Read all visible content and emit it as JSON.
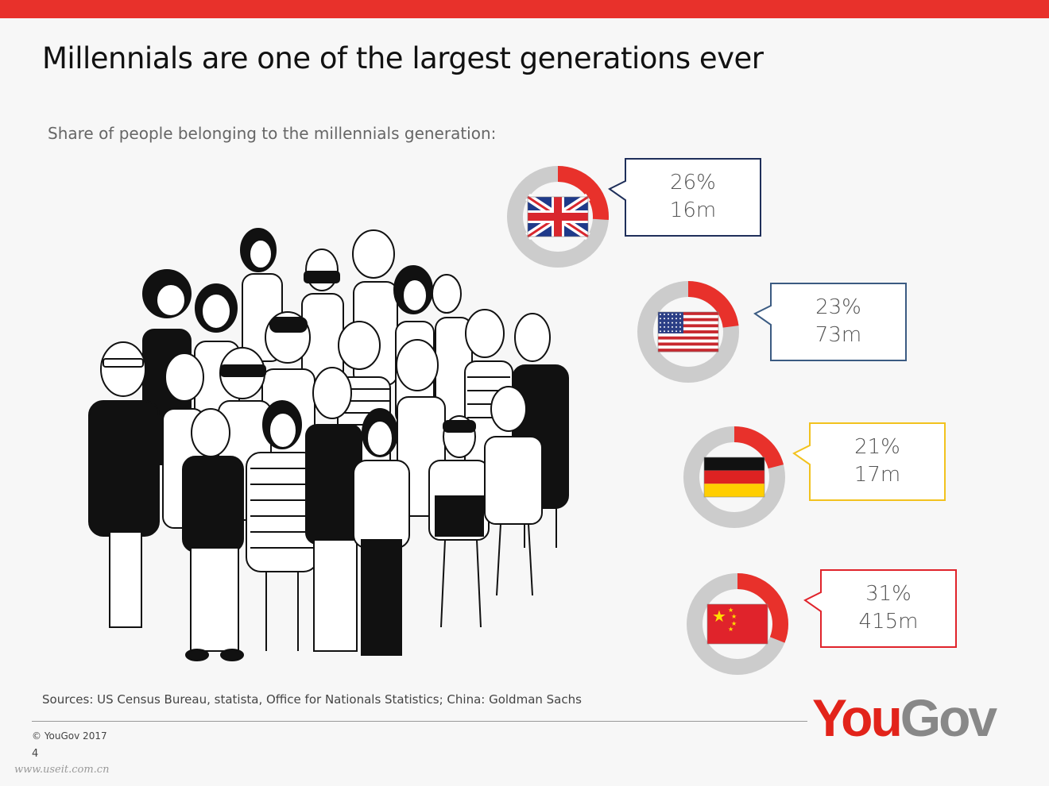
{
  "colors": {
    "accent": "#e8312b",
    "ring": "#cccccc",
    "uk_box": "#1f2f5a",
    "us_box": "#3b5b82",
    "de_box": "#f2c21e",
    "cn_box": "#e0232b"
  },
  "header": {
    "title": "Millennials are one of the largest generations ever",
    "subtitle": "Share of people belonging to the millennials generation:"
  },
  "illustration": {
    "icon": "crowd-illustration"
  },
  "chart_data": {
    "type": "pie",
    "title": "Share of people belonging to the millennials generation:",
    "items": [
      {
        "country": "UK",
        "flag": "uk-flag-icon",
        "share": 26,
        "share_label": "26%",
        "count_label": "16m"
      },
      {
        "country": "USA",
        "flag": "us-flag-icon",
        "share": 23,
        "share_label": "23%",
        "count_label": "73m"
      },
      {
        "country": "Germany",
        "flag": "germany-flag-icon",
        "share": 21,
        "share_label": "21%",
        "count_label": "17m"
      },
      {
        "country": "China",
        "flag": "china-flag-icon",
        "share": 31,
        "share_label": "31%",
        "count_label": "415m"
      }
    ]
  },
  "footer": {
    "sources": "Sources: US Census Bureau, statista, Office for Nationals Statistics; China: Goldman Sachs",
    "copyright": "©  YouGov 2017",
    "page": "4",
    "logo_you": "You",
    "logo_gov": "Gov",
    "watermark": "www.useit.com.cn"
  }
}
